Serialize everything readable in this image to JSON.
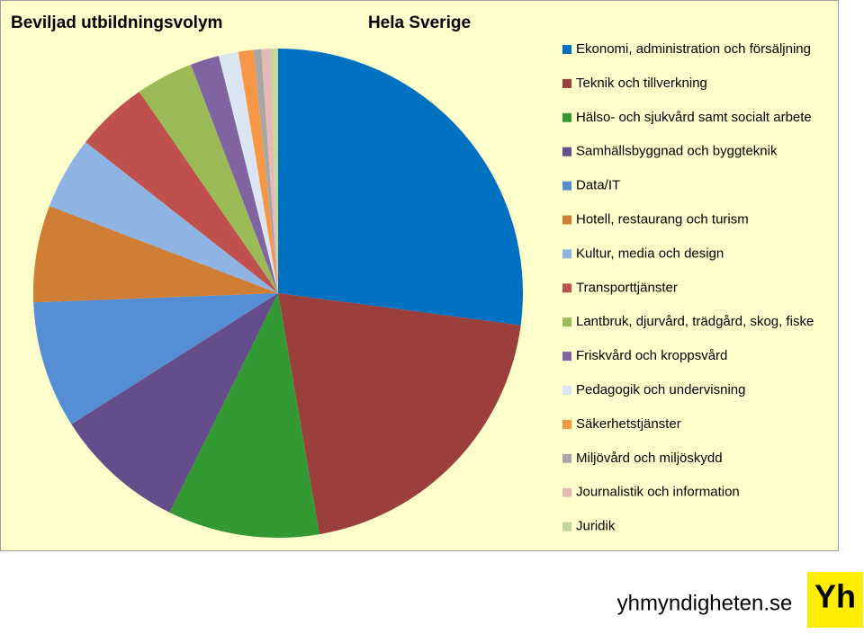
{
  "chart_data": {
    "type": "pie",
    "title": "Beviljad utbildningsvolym",
    "subtitle": "Hela Sverige",
    "categories": [
      "Ekonomi, administration och försäljning",
      "Teknik och tillverkning",
      "Hälso- och sjukvård samt socialt arbete",
      "Samhällsbyggnad och byggteknik",
      "Data/IT",
      "Hotell, restaurang och turism",
      "Kultur, media och design",
      "Transporttjänster",
      "Lantbruk, djurvård, trädgård, skog, fiske",
      "Friskvård och kroppsvård",
      "Pedagogik och undervisning",
      "Säkerhetstjänster",
      "Miljövård och miljöskydd",
      "Journalistik och information",
      "Juridik"
    ],
    "values": [
      27.1,
      20.2,
      10.0,
      8.7,
      8.4,
      6.4,
      4.8,
      4.8,
      3.8,
      1.9,
      1.3,
      1.0,
      0.5,
      0.6,
      0.5
    ],
    "colors": [
      "#0070c0",
      "#9b3f3d",
      "#339933",
      "#654c8a",
      "#558ed5",
      "#d07d35",
      "#8eb4e3",
      "#c0504d",
      "#9bbb59",
      "#8064a2",
      "#dbe5f1",
      "#f79646",
      "#a6a6a6",
      "#e6b9b8",
      "#c3d69b"
    ],
    "legend": "right"
  },
  "footer": {
    "site": "yhmyndigheten.se",
    "logo": "Yh"
  }
}
